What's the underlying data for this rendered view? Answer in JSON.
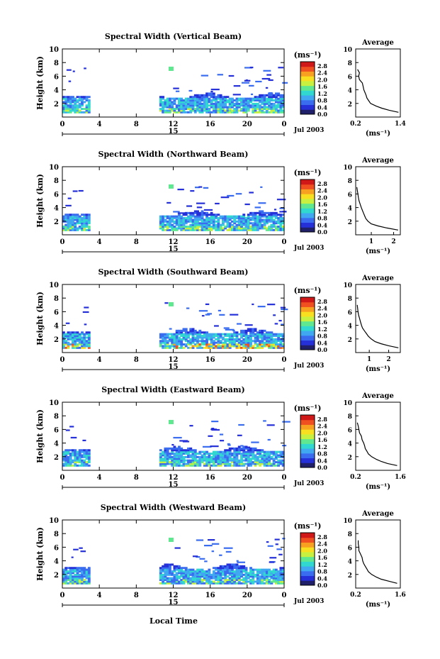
{
  "figure": {
    "xlabel": "Local Time",
    "ylabel": "Height (km)",
    "date_label": "Jul 2003",
    "day_label": "15",
    "colorbar_unit": "(ms⁻¹)",
    "colorbar_ticks": [
      "2.8",
      "2.4",
      "2.0",
      "1.6",
      "1.2",
      "0.8",
      "0.4",
      "0.0"
    ],
    "colors": {
      "background": "#ffffff",
      "axes": "#000000",
      "colormap": [
        "#20206a",
        "#2530d8",
        "#3a6cf0",
        "#40a8f0",
        "#30d8d0",
        "#60e890",
        "#c8f040",
        "#f8e020",
        "#f8a020",
        "#f05020",
        "#d01818"
      ]
    }
  },
  "chart_data": [
    {
      "type": "heatmap",
      "title": "Spectral Width (Vertical Beam)",
      "avg_title": "Average",
      "avg_xlabel": "(ms⁻¹)",
      "x_ticks": [
        "0",
        "4",
        "8",
        "12",
        "16",
        "20",
        "0"
      ],
      "xlim": [
        0,
        24
      ],
      "y_ticks": [
        "2",
        "4",
        "6",
        "8",
        "10"
      ],
      "ylim": [
        0,
        10
      ],
      "avg_x_ticks": [
        "0.2",
        "1.4"
      ],
      "avg_xlim": [
        0.2,
        1.4
      ],
      "avg_profile": {
        "heights": [
          0.7,
          1.0,
          1.3,
          1.6,
          2.0,
          2.4,
          2.8,
          3.2,
          3.6,
          4.0,
          4.5,
          5.0,
          5.5,
          6.0,
          6.5,
          7.0
        ],
        "values": [
          1.35,
          1.1,
          0.9,
          0.75,
          0.6,
          0.55,
          0.5,
          0.48,
          0.45,
          0.42,
          0.4,
          0.38,
          0.3,
          0.28,
          0.3,
          0.25
        ]
      }
    },
    {
      "type": "heatmap",
      "title": "Spectral Width (Northward Beam)",
      "avg_title": "Average",
      "avg_xlabel": "(ms⁻¹)",
      "x_ticks": [
        "0",
        "4",
        "8",
        "12",
        "16",
        "20",
        "0"
      ],
      "xlim": [
        0,
        24
      ],
      "y_ticks": [
        "2",
        "4",
        "6",
        "8",
        "10"
      ],
      "ylim": [
        0,
        10
      ],
      "avg_x_ticks": [
        "1",
        "2"
      ],
      "avg_xlim": [
        0.3,
        2.3
      ],
      "avg_profile": {
        "heights": [
          0.7,
          1.0,
          1.3,
          1.6,
          2.0,
          2.4,
          2.8,
          3.2,
          3.6,
          4.0,
          4.5,
          5.0,
          5.5,
          6.0,
          7.0
        ],
        "values": [
          2.2,
          1.7,
          1.3,
          1.0,
          0.85,
          0.75,
          0.7,
          0.65,
          0.6,
          0.55,
          0.5,
          0.45,
          0.42,
          0.4,
          0.35
        ]
      }
    },
    {
      "type": "heatmap",
      "title": "Spectral Width (Southward Beam)",
      "avg_title": "Average",
      "avg_xlabel": "(ms⁻¹)",
      "x_ticks": [
        "0",
        "4",
        "8",
        "12",
        "16",
        "20",
        "0"
      ],
      "xlim": [
        0,
        24
      ],
      "y_ticks": [
        "2",
        "4",
        "6",
        "8",
        "10"
      ],
      "ylim": [
        0,
        10
      ],
      "avg_x_ticks": [
        "1",
        "2"
      ],
      "avg_xlim": [
        0.3,
        2.6
      ],
      "avg_profile": {
        "heights": [
          0.7,
          1.0,
          1.3,
          1.6,
          2.0,
          2.4,
          2.8,
          3.2,
          3.6,
          4.0,
          4.5,
          5.0,
          5.5,
          6.0,
          7.0
        ],
        "values": [
          2.5,
          2.0,
          1.6,
          1.3,
          1.1,
          0.95,
          0.85,
          0.75,
          0.65,
          0.6,
          0.55,
          0.5,
          0.45,
          0.42,
          0.38
        ]
      }
    },
    {
      "type": "heatmap",
      "title": "Spectral Width (Eastward Beam)",
      "avg_title": "Average",
      "avg_xlabel": "(ms⁻¹)",
      "x_ticks": [
        "0",
        "4",
        "8",
        "12",
        "16",
        "20",
        "0"
      ],
      "xlim": [
        0,
        24
      ],
      "y_ticks": [
        "2",
        "4",
        "6",
        "8",
        "10"
      ],
      "ylim": [
        0,
        10
      ],
      "avg_x_ticks": [
        "0.2",
        "1.6"
      ],
      "avg_xlim": [
        0.2,
        1.6
      ],
      "avg_profile": {
        "heights": [
          0.7,
          1.0,
          1.3,
          1.6,
          2.0,
          2.4,
          2.8,
          3.2,
          3.6,
          4.0,
          4.5,
          5.0,
          5.5,
          6.0,
          6.5,
          7.0
        ],
        "values": [
          1.5,
          1.2,
          1.0,
          0.85,
          0.7,
          0.6,
          0.55,
          0.5,
          0.48,
          0.45,
          0.4,
          0.38,
          0.32,
          0.3,
          0.28,
          0.25
        ]
      }
    },
    {
      "type": "heatmap",
      "title": "Spectral Width (Westward Beam)",
      "avg_title": "Average",
      "avg_xlabel": "(ms⁻¹)",
      "x_ticks": [
        "0",
        "4",
        "8",
        "12",
        "16",
        "20",
        "0"
      ],
      "xlim": [
        0,
        24
      ],
      "y_ticks": [
        "2",
        "4",
        "6",
        "8",
        "10"
      ],
      "ylim": [
        0,
        10
      ],
      "avg_x_ticks": [
        "0.2",
        "1.6"
      ],
      "avg_xlim": [
        0.2,
        1.6
      ],
      "avg_profile": {
        "heights": [
          0.7,
          1.0,
          1.3,
          1.6,
          2.0,
          2.4,
          2.8,
          3.2,
          3.6,
          4.0,
          4.5,
          5.0,
          5.5,
          6.0,
          6.5,
          7.0
        ],
        "values": [
          1.5,
          1.25,
          1.0,
          0.85,
          0.7,
          0.6,
          0.55,
          0.5,
          0.45,
          0.42,
          0.4,
          0.35,
          0.3,
          0.3,
          0.28,
          0.28
        ]
      }
    }
  ]
}
